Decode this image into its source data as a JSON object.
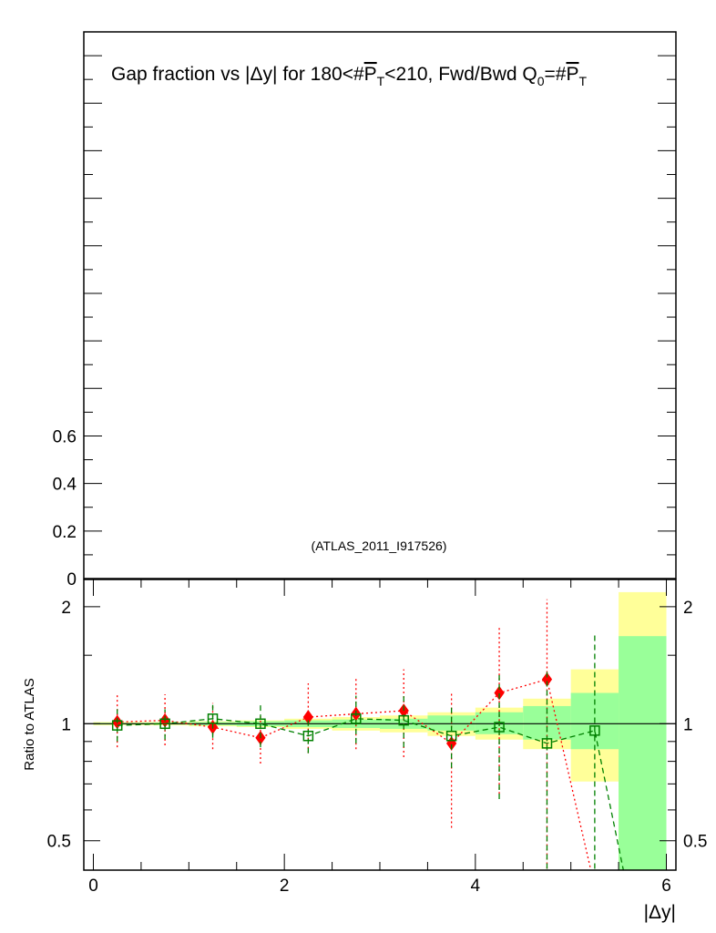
{
  "chart_data": [
    {
      "type": "line",
      "panel": "main",
      "title": "Gap fraction vs |Δy| for 180<#P_T<210, Fwd/Bwd Q_0=#P_T",
      "title_parts": {
        "before": "Gap fraction vs |Δy| for 180<#",
        "pt": "P",
        "pt_sub": "T",
        "middle": "<210, Fwd/Bwd Q",
        "q_sub": "0",
        "eq": "=#"
      },
      "annotation": "(ATLAS_2011_I917526)",
      "ylim": [
        0,
        2.3
      ],
      "yticks": [
        0,
        0.2,
        0.4,
        0.6
      ],
      "ytick_labels": [
        "0",
        "0.2",
        "0.4",
        "0.6"
      ],
      "series": []
    },
    {
      "type": "line",
      "panel": "ratio",
      "ylabel": "Ratio to ATLAS",
      "xlabel": "|Δy|",
      "xlim": [
        -0.1,
        6.1
      ],
      "ylim": [
        0.42,
        2.35
      ],
      "yscale": "log",
      "xticks": [
        0,
        2,
        4,
        6
      ],
      "xtick_labels": [
        "0",
        "2",
        "4",
        "6"
      ],
      "yticks": [
        0.5,
        1,
        2
      ],
      "ytick_labels": [
        "0.5",
        "1",
        "2"
      ],
      "reference_line": 1,
      "bins": [
        0,
        0.5,
        1,
        1.5,
        2,
        2.5,
        3,
        3.5,
        4,
        4.5,
        5,
        5.5,
        6
      ],
      "band_yellow": [
        [
          0.99,
          1.01
        ],
        [
          0.99,
          1.01
        ],
        [
          0.985,
          1.015
        ],
        [
          0.98,
          1.02
        ],
        [
          0.97,
          1.03
        ],
        [
          0.96,
          1.04
        ],
        [
          0.95,
          1.05
        ],
        [
          0.93,
          1.07
        ],
        [
          0.91,
          1.1
        ],
        [
          0.86,
          1.16
        ],
        [
          0.71,
          1.38
        ],
        [
          0.4,
          2.18
        ]
      ],
      "band_green": [
        [
          0.995,
          1.005
        ],
        [
          0.995,
          1.005
        ],
        [
          0.99,
          1.01
        ],
        [
          0.985,
          1.015
        ],
        [
          0.98,
          1.02
        ],
        [
          0.975,
          1.025
        ],
        [
          0.97,
          1.03
        ],
        [
          0.96,
          1.05
        ],
        [
          0.94,
          1.07
        ],
        [
          0.91,
          1.11
        ],
        [
          0.86,
          1.2
        ],
        [
          0.4,
          1.68
        ]
      ],
      "series": [
        {
          "name": "Red generator (filled diamonds, dotted)",
          "color": "#ff0000",
          "x": [
            0.25,
            0.75,
            1.25,
            1.75,
            2.25,
            2.75,
            3.25,
            3.75,
            4.25,
            4.75
          ],
          "y": [
            1.01,
            1.02,
            0.98,
            0.92,
            1.04,
            1.06,
            1.08,
            0.89,
            1.2,
            1.3
          ],
          "err_low": [
            0.87,
            0.88,
            0.86,
            0.79,
            0.84,
            0.86,
            0.82,
            0.54,
            0.66,
            0.36
          ],
          "err_high": [
            1.2,
            1.19,
            1.13,
            1.06,
            1.27,
            1.31,
            1.38,
            1.21,
            1.77,
            2.09
          ],
          "trailing_line_to": [
            5.25,
            0.38
          ]
        },
        {
          "name": "Green generator (open squares, dashed)",
          "color": "#008000",
          "x": [
            0.25,
            0.75,
            1.25,
            1.75,
            2.25,
            2.75,
            3.25,
            3.75,
            4.25,
            4.75,
            5.25
          ],
          "y": [
            0.99,
            1.0,
            1.03,
            1.0,
            0.93,
            1.03,
            1.02,
            0.93,
            0.98,
            0.89,
            0.96
          ],
          "err_low": [
            0.9,
            0.91,
            0.92,
            0.87,
            0.84,
            0.89,
            0.87,
            0.77,
            0.64,
            0.36,
            0.36
          ],
          "err_high": [
            1.09,
            1.09,
            1.14,
            1.12,
            1.04,
            1.18,
            1.19,
            1.11,
            1.36,
            1.36,
            1.7
          ],
          "trailing_line_to": [
            5.55,
            0.42
          ]
        }
      ]
    }
  ]
}
